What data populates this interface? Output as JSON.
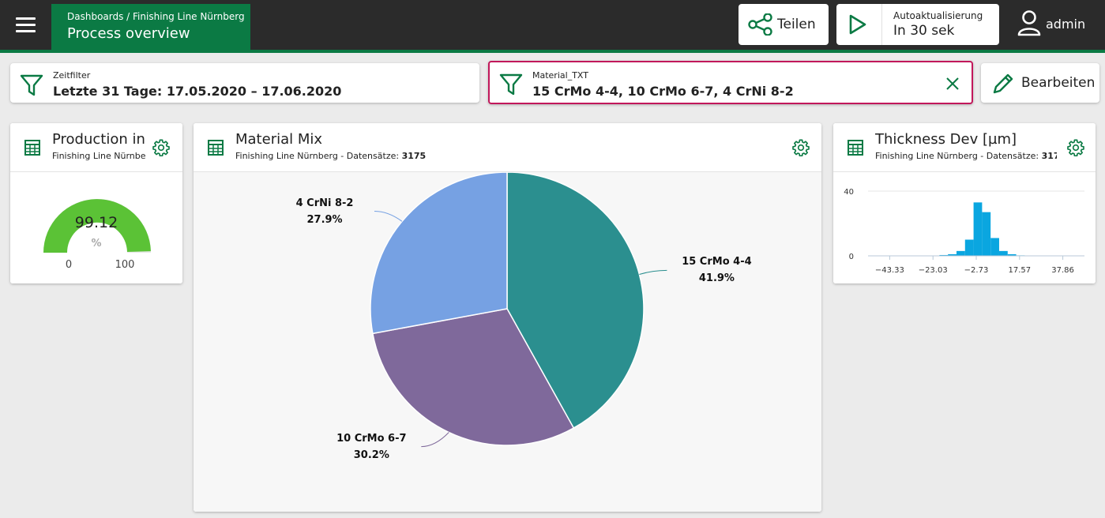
{
  "header": {
    "breadcrumb": "Dashboards / Finishing Line Nürnberg",
    "title": "Process overview",
    "share_label": "Teilen",
    "autorefresh_label": "Autoaktualisierung",
    "autorefresh_value": "In 30 sek",
    "user_name": "admin"
  },
  "filters": {
    "time": {
      "label": "Zeitfilter",
      "value": "Letzte 31 Tage: 17.05.2020 – 17.06.2020"
    },
    "material": {
      "label": "Material_TXT",
      "value": "15 CrMo 4-4, 10 CrMo 6-7, 4 CrNi 8-2"
    },
    "edit_label": "Bearbeiten"
  },
  "cards": {
    "production": {
      "title": "Production in",
      "subtitle": "Finishing Line Nürnbe",
      "gauge": {
        "value": "99.12",
        "unit": "%",
        "min": "0",
        "max": "100"
      }
    },
    "material_mix": {
      "title": "Material Mix",
      "subtitle_prefix": "Finishing Line Nürnberg - Datensätze: ",
      "records": "3175"
    },
    "thickness": {
      "title": "Thickness Dev [µm]",
      "subtitle_prefix": "Finishing Line Nürnberg - Datensätze: ",
      "records": "317"
    }
  },
  "colors": {
    "brand_green": "#0b7a44",
    "topbar": "#2b2b2b",
    "active_filter_border": "#c2185b",
    "gauge_fill": "#5bc236",
    "histogram": "#0aa6e0"
  },
  "chart_data": [
    {
      "type": "pie",
      "title": "Material Mix",
      "categories": [
        "15 CrMo 4-4",
        "10 CrMo 6-7",
        "4 CrNi 8-2"
      ],
      "values": [
        41.9,
        30.2,
        27.9
      ],
      "percent_labels": [
        "41.9%",
        "30.2%",
        "27.9%"
      ],
      "colors": [
        "#2b8f8f",
        "#7f699b",
        "#76a1e3"
      ]
    },
    {
      "type": "bar",
      "title": "Thickness Dev [µm]",
      "x_tick_labels": [
        "-43.33",
        "-23.03",
        "-2.73",
        "17.57",
        "37.86"
      ],
      "y_tick_labels": [
        "40",
        "0"
      ],
      "ylim": [
        0,
        40
      ],
      "bins": [
        -18,
        -14,
        -10,
        -6,
        -2,
        2,
        6,
        10,
        14,
        18
      ],
      "values": [
        0.5,
        1,
        3,
        10,
        33,
        27,
        11,
        3,
        1,
        0.3
      ]
    }
  ]
}
